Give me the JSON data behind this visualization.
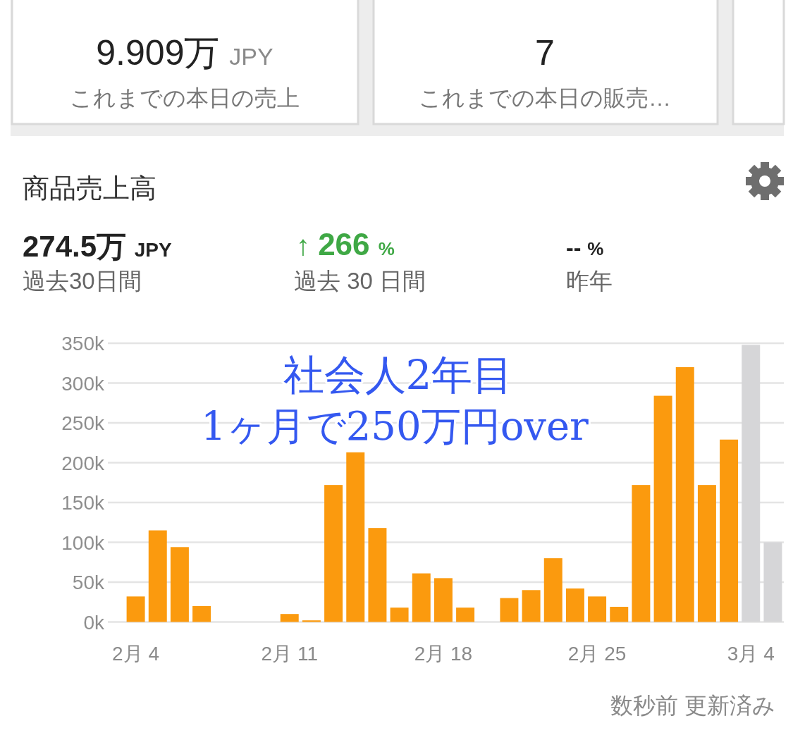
{
  "chart_data": [
    {
      "type": "other",
      "annotations": [
        "9.909万 JPY",
        "これまでの本日の売上",
        "7",
        "これまでの本日の販売…"
      ]
    },
    {
      "type": "bar",
      "title": "商品売上高",
      "annotations": [
        "274.5万 JPY",
        "過去30日間",
        "↑ 266 %",
        "過去 30 日間",
        "-- %",
        "昨年",
        "社会人2年目",
        "1ヶ月で250万円over",
        "数秒前 更新済み"
      ],
      "categories": [
        "2月 4",
        null,
        null,
        null,
        null,
        null,
        null,
        "2月 11",
        null,
        null,
        null,
        null,
        null,
        null,
        "2月 18",
        null,
        null,
        null,
        null,
        null,
        null,
        "2月 25",
        null,
        null,
        null,
        null,
        null,
        null,
        "3月 4",
        null
      ],
      "values": [
        32000,
        115000,
        94000,
        20000,
        null,
        null,
        null,
        10000,
        2000,
        172000,
        213000,
        118000,
        18000,
        61000,
        55000,
        18000,
        null,
        30000,
        40000,
        80000,
        42000,
        32000,
        19000,
        172000,
        284000,
        320000,
        172000,
        229000,
        348000,
        100000
      ],
      "colors": [
        "#fb9a0e",
        "#fb9a0e",
        "#fb9a0e",
        "#fb9a0e",
        null,
        null,
        null,
        "#fb9a0e",
        "#fb9a0e",
        "#fb9a0e",
        "#fb9a0e",
        "#fb9a0e",
        "#fb9a0e",
        "#fb9a0e",
        "#fb9a0e",
        "#fb9a0e",
        null,
        "#fb9a0e",
        "#fb9a0e",
        "#fb9a0e",
        "#fb9a0e",
        "#fb9a0e",
        "#fb9a0e",
        "#fb9a0e",
        "#fb9a0e",
        "#fb9a0e",
        "#fb9a0e",
        "#fb9a0e",
        "#d6d6d8",
        "#d6d6d8"
      ],
      "ylim": [
        0,
        350000
      ],
      "yticks": [
        {
          "value": 0,
          "label": "0k"
        },
        {
          "value": 50000,
          "label": "50k"
        },
        {
          "value": 100000,
          "label": "100k"
        },
        {
          "value": 150000,
          "label": "150k"
        },
        {
          "value": 200000,
          "label": "200k"
        },
        {
          "value": 250000,
          "label": "250k"
        },
        {
          "value": 300000,
          "label": "300k"
        },
        {
          "value": 350000,
          "label": "350k"
        }
      ],
      "grid": "y"
    }
  ]
}
